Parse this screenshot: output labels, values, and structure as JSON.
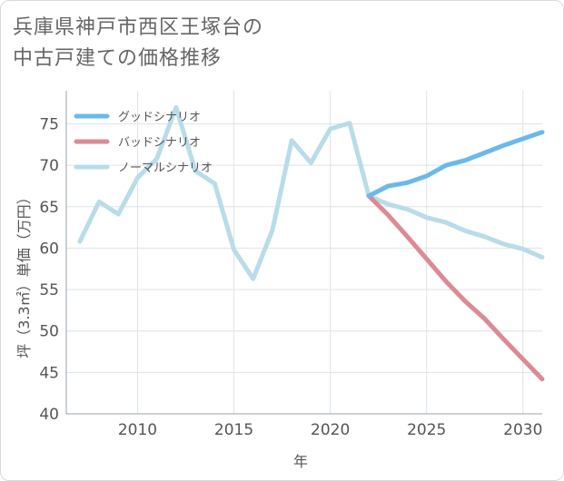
{
  "title": {
    "line1": "兵庫県神戸市西区王塚台の",
    "line2": "中古戸建ての価格推移"
  },
  "colors": {
    "good": "#6bb8ec",
    "bad": "#dc8a93",
    "normal": "#b8dce9",
    "grid": "#dde3ea",
    "axis": "#9aa3ad"
  },
  "chart_data": {
    "type": "line",
    "xlabel": "年",
    "ylabel": "坪（3.3㎡）単価（万円）",
    "xlim": [
      2006.3,
      2031
    ],
    "ylim": [
      40,
      79
    ],
    "x_ticks": [
      2010,
      2015,
      2020,
      2025,
      2030
    ],
    "y_ticks": [
      40,
      45,
      50,
      55,
      60,
      65,
      70,
      75
    ],
    "legend_position": "top-left",
    "series": [
      {
        "name": "グッドシナリオ",
        "key": "good",
        "x": [
          2022,
          2023,
          2024,
          2025,
          2026,
          2027,
          2028,
          2029,
          2030,
          2031
        ],
        "values": [
          66.3,
          67.5,
          67.9,
          68.7,
          70.0,
          70.6,
          71.5,
          72.4,
          73.2,
          74.0
        ]
      },
      {
        "name": "バッドシナリオ",
        "key": "bad",
        "x": [
          2022,
          2023,
          2024,
          2025,
          2026,
          2027,
          2028,
          2029,
          2030,
          2031
        ],
        "values": [
          66.3,
          64.0,
          61.4,
          58.7,
          56.0,
          53.6,
          51.5,
          49.0,
          46.6,
          44.2
        ]
      },
      {
        "name": "ノーマルシナリオ",
        "key": "normal",
        "x": [
          2007,
          2008,
          2009,
          2010,
          2011,
          2012,
          2013,
          2014,
          2015,
          2016,
          2017,
          2018,
          2019,
          2020,
          2021,
          2022,
          2023,
          2024,
          2025,
          2026,
          2027,
          2028,
          2029,
          2030,
          2031
        ],
        "values": [
          60.8,
          65.6,
          64.1,
          68.5,
          70.8,
          77.0,
          69.3,
          67.8,
          59.8,
          56.3,
          62.2,
          73.0,
          70.3,
          74.4,
          75.1,
          66.3,
          65.3,
          64.7,
          63.7,
          63.1,
          62.1,
          61.4,
          60.5,
          59.9,
          58.9
        ]
      }
    ]
  }
}
